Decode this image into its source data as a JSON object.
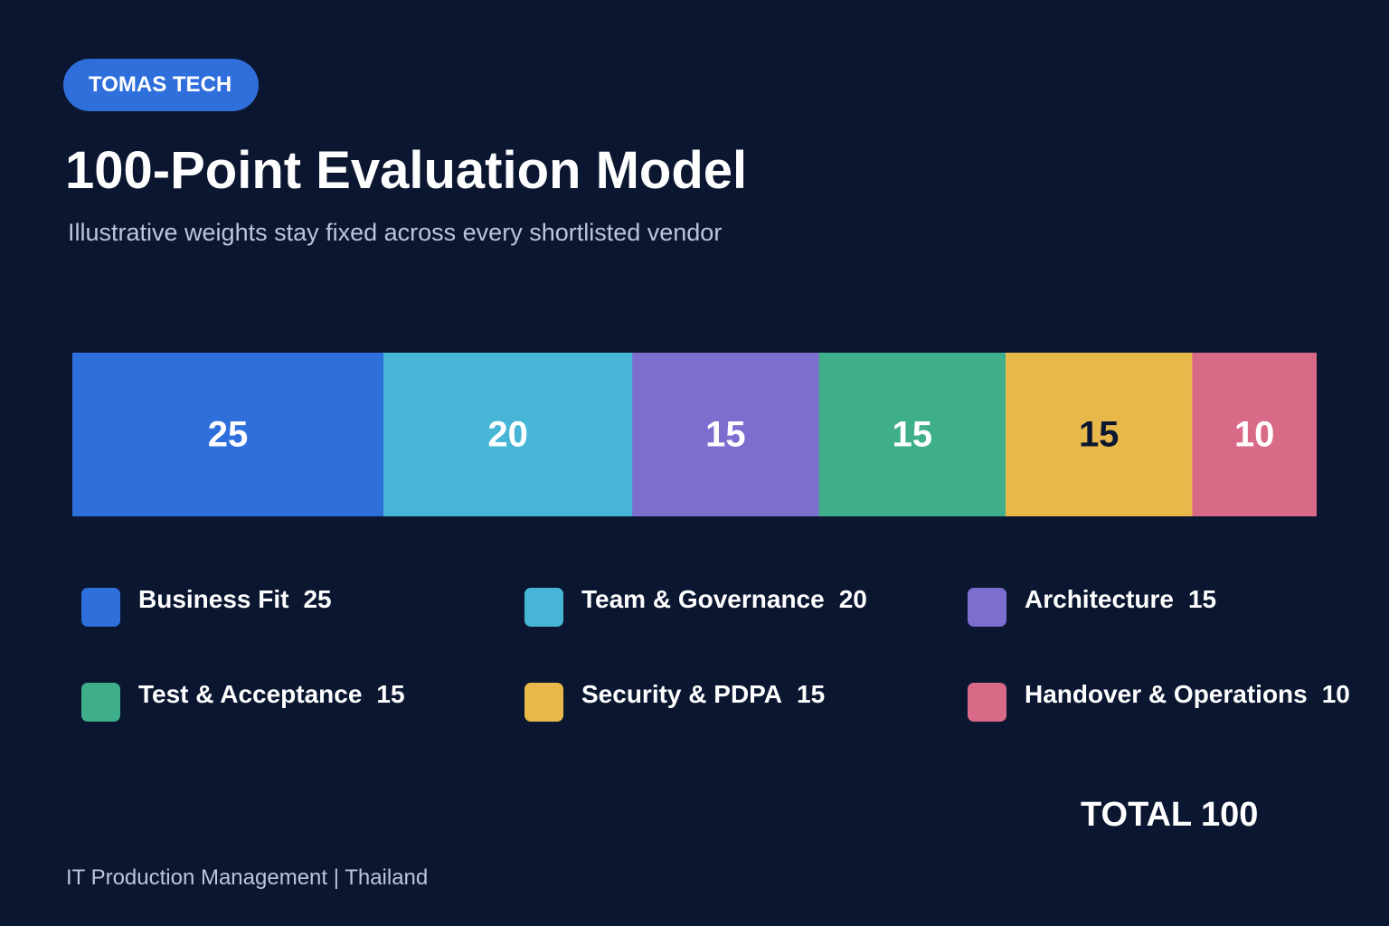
{
  "brand": {
    "label": "TOMAS TECH"
  },
  "header": {
    "title": "100-Point Evaluation Model",
    "subtitle": "Illustrative weights stay fixed across every shortlisted vendor"
  },
  "chart_data": {
    "type": "bar",
    "orientation": "horizontal-stacked",
    "title": "100-Point Evaluation Model",
    "subtitle": "Illustrative weights stay fixed across every shortlisted vendor",
    "categories": [
      "Business Fit",
      "Team & Governance",
      "Architecture",
      "Test & Acceptance",
      "Security & PDPA",
      "Handover & Operations"
    ],
    "values": [
      25,
      20,
      15,
      15,
      15,
      10
    ],
    "colors": [
      "#2f6fdc",
      "#47b6d6",
      "#7b6ecf",
      "#3fae8b",
      "#e8b84a",
      "#d86a87"
    ],
    "label_colors": [
      "#ffffff",
      "#ffffff",
      "#ffffff",
      "#ffffff",
      "#0b1731",
      "#ffffff"
    ],
    "xlim": [
      0,
      100
    ],
    "legend_position": "bottom",
    "grid": false,
    "total": 100
  },
  "legend": {
    "items": [
      {
        "name": "Business Fit",
        "value": "25"
      },
      {
        "name": "Team & Governance",
        "value": "20"
      },
      {
        "name": "Architecture",
        "value": "15"
      },
      {
        "name": "Test & Acceptance",
        "value": "15"
      },
      {
        "name": "Security & PDPA",
        "value": "15"
      },
      {
        "name": "Handover & Operations",
        "value": "10"
      }
    ]
  },
  "total": {
    "label": "TOTAL 100"
  },
  "footer": {
    "text": "IT Production Management | Thailand"
  }
}
